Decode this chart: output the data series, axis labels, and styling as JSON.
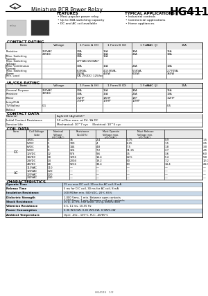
{
  "title": "HG4115",
  "subtitle": "Miniature PCB Power Relay",
  "bg_color": "#ffffff",
  "text_color": "#000000",
  "features": [
    "Most popular power relay",
    "Up to 30A switching capacity",
    "DC and AC coil available"
  ],
  "applications": [
    "Industrial controls",
    "Commercial applications",
    "Home appliances"
  ],
  "contact_rating_headers": [
    "Form",
    "Voltage",
    "1 Form A (H)",
    "1 Form B (D)",
    "1 Form C (J)\n30A",
    "1 Form C (J)\n15A"
  ],
  "contact_rating_rows": [
    [
      "Resistive",
      "250VAC\n28VDC",
      "30A\n30A",
      "15A\n15A",
      "30A\n20A",
      "15A\n10A"
    ],
    [
      "Max. Switching Current",
      "",
      "30A",
      "15A",
      "",
      ""
    ],
    [
      "Max. Switching Voltage",
      "",
      "277VAC/250VAC*",
      "",
      "",
      ""
    ],
    [
      "Max. Continuous Current",
      "",
      "30A",
      "15A",
      "20A",
      "10A"
    ],
    [
      "Max. Switching Power",
      "",
      "8.3KVA,\n900W",
      "4.155KVA,\n450W",
      "5.5KVA,\n600W",
      "2.77KVA, 360W"
    ],
    [
      "Min. Load",
      "",
      "5A, 250DC/ 125Vac",
      "",
      "",
      ""
    ]
  ],
  "ul_csa_headers": [
    "Load Type",
    "Voltage",
    "1 Form A (H)",
    "1 Form B (D)",
    "1 Form C (J)\n30A",
    "1 Form C (J)\n15A"
  ],
  "ul_csa_rows": [
    [
      "General Purpose",
      "250VAC\n30VDC",
      "30A",
      "15A",
      "30A",
      "15A"
    ],
    [
      "Resistive",
      "",
      "30A",
      "15A",
      "20A",
      "10A"
    ],
    [
      "Motor",
      "",
      "1/2HP\n1/3HP",
      "1/6HP\n1/3HP",
      "1HP\n1/2HP",
      "1/2HP"
    ],
    [
      "Lamp/FLA",
      "",
      "",
      "",
      "",
      ""
    ],
    [
      "TV Ballast",
      "0.1",
      "",
      "",
      "",
      "0.5"
    ],
    [
      "Ballast",
      "",
      "",
      "",
      "",
      ""
    ]
  ],
  "contact_data_rows": [
    [
      "Material",
      "AgSnO2 (AgCdO2)*"
    ],
    [
      "Initial Contact Resistance",
      "50 mOhm max. at 5V, 1A DC"
    ],
    [
      "Service Life",
      "Mechanical: 10^7 cyc\nElectrical: 10^5 cyc"
    ]
  ],
  "coil_data_dc_rows": [
    [
      "3VDC",
      "3",
      "36",
      "2.4",
      "3.75",
      "0.9",
      "1.5"
    ],
    [
      "5VDC",
      "5",
      "100",
      "4",
      "6.25",
      "1.5",
      "2.5"
    ],
    [
      "6VDC",
      "6",
      "144",
      "4.8",
      "7.5",
      "1.8",
      "3.0"
    ],
    [
      "9VDC",
      "9",
      "324",
      "7.2",
      "11.25",
      "2.7",
      "4.5"
    ],
    [
      "12VDC",
      "12",
      "576",
      "9.6",
      "15",
      "3.6",
      "6.0"
    ],
    [
      "18VDC",
      "18",
      "1296",
      "14.4",
      "22.5",
      "5.4",
      "9.0"
    ],
    [
      "24VDC",
      "24",
      "2304",
      "19.2",
      "30",
      "7.2",
      "12.0"
    ],
    [
      "48VDC",
      "48",
      "9216",
      "38.4",
      "60",
      "14.4",
      "24.0"
    ]
  ],
  "coil_data_ac_rows": [
    [
      "110VAC",
      "110",
      "—",
      "—",
      "—",
      "—",
      "—"
    ],
    [
      "120VAC",
      "120",
      "—",
      "—",
      "—",
      "—",
      "—"
    ],
    [
      "220VAC",
      "220",
      "—",
      "—",
      "—",
      "—",
      "—"
    ],
    [
      "240VAC",
      "240",
      "—",
      "—",
      "—",
      "—",
      "—"
    ]
  ],
  "characteristics_rows": [
    [
      "Operate Time",
      "15 ms max DC coil, 30 ms for AC coil, 8 mA"
    ],
    [
      "Release Time",
      "5 ms for D.C coil, 30 ms for AC coil, 8 mA"
    ],
    [
      "Insulation Resistance",
      "100 MOhm min. 500 VDC, 20°C 65%"
    ],
    [
      "Dielectric Strength",
      "1,000 Vrms, 1 min. Between open contacts\n1,500 Vrms, 1 min. Between coil and contacts"
    ],
    [
      "Shock Resistance",
      "10 g, 11 ms, half wave, 100 g, destruction"
    ],
    [
      "Vibration Resistance",
      "0.5, 11 ms, 10-55 Hz"
    ],
    [
      "Power Consumption",
      "0.36 W/0.5W, 0.45 W/0.6W, 0.9W/1.2W"
    ],
    [
      "Ambient Temperature",
      "Oper: -40c - 105°C, PLC: -40/85°C"
    ]
  ],
  "footer": "HG4115   1/2"
}
